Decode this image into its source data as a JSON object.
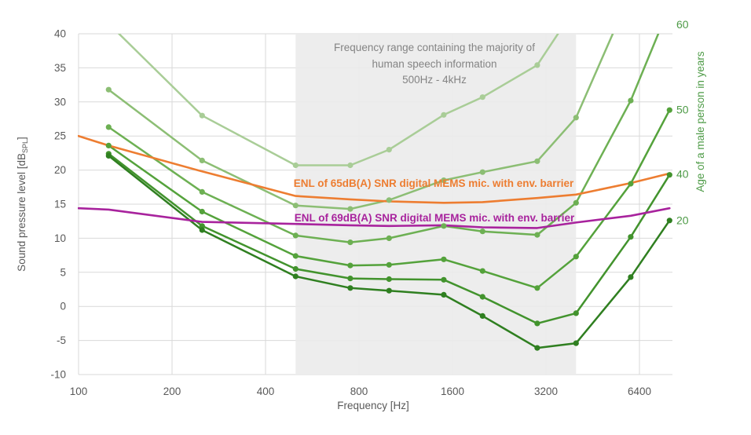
{
  "chart_data": {
    "type": "line",
    "title": "",
    "xlabel": "Frequency [Hz]",
    "ylabel_left": {
      "prefix": "Sound pressure level [dB",
      "subscript": "SPL",
      "suffix": "]"
    },
    "ylabel_right": "Age of a male person in years",
    "x_scale": "log2",
    "x_ticks": [
      100,
      200,
      400,
      800,
      1600,
      3200,
      6400
    ],
    "x_tick_labels": [
      "100",
      "200",
      "400",
      "800",
      "1600",
      "3200",
      "6400"
    ],
    "x_range_hz": [
      100,
      8300
    ],
    "y_ticks": [
      -10,
      -5,
      0,
      5,
      10,
      15,
      20,
      25,
      30,
      35,
      40
    ],
    "ylim": [
      -10,
      40
    ],
    "grid": true,
    "shaded_region": {
      "x_start_hz": 500,
      "x_end_hz": 4000,
      "label_line1": "Frequency range containing the majority of",
      "label_line2": "human speech information",
      "label_line3": "500Hz - 4kHz"
    },
    "threshold_frequencies_hz": [
      125,
      250,
      500,
      750,
      1000,
      1500,
      2000,
      3000,
      4000,
      6000,
      8000
    ],
    "series": [
      {
        "name": "male-hearing-threshold-oldest-unlabeled",
        "age_label": "",
        "color": "#a9cd97",
        "values": [
          41.5,
          28.0,
          20.7,
          20.7,
          23.0,
          28.1,
          30.7,
          35.4,
          44.0,
          null,
          null
        ]
      },
      {
        "name": "male-hearing-threshold-unlabeled",
        "age_label": "",
        "color": "#8cbe74",
        "values": [
          31.8,
          21.4,
          14.8,
          14.3,
          15.6,
          18.5,
          19.7,
          21.3,
          27.7,
          46.0,
          null
        ]
      },
      {
        "name": "male-hearing-threshold-age-60",
        "age_label": "60",
        "color": "#6db053",
        "values": [
          26.3,
          16.8,
          10.4,
          9.4,
          10.0,
          11.8,
          11.0,
          10.5,
          15.2,
          30.2,
          44.0
        ]
      },
      {
        "name": "male-hearing-threshold-age-50",
        "age_label": "50",
        "color": "#54a23b",
        "values": [
          23.6,
          13.9,
          7.4,
          6.0,
          6.1,
          6.9,
          5.2,
          2.7,
          7.3,
          18.0,
          28.8
        ]
      },
      {
        "name": "male-hearing-threshold-age-40",
        "age_label": "40",
        "color": "#42932d",
        "values": [
          22.4,
          11.8,
          5.5,
          4.1,
          4.0,
          3.9,
          1.4,
          -2.5,
          -1.0,
          10.2,
          19.3
        ]
      },
      {
        "name": "male-hearing-threshold-age-20",
        "age_label": "20",
        "color": "#2f7f20",
        "values": [
          22.1,
          11.2,
          4.4,
          2.7,
          2.3,
          1.7,
          -1.4,
          -6.1,
          -5.4,
          4.3,
          12.6
        ]
      }
    ],
    "mic_lines": [
      {
        "name": "enl-65dba-mems-mic",
        "color": "#ed7d31",
        "label": "ENL of 65dB(A) SNR digital MEMS mic. with env. barrier",
        "x": [
          100,
          125,
          250,
          500,
          750,
          1000,
          1500,
          2000,
          3000,
          4000,
          6000,
          8000
        ],
        "values": [
          25.0,
          23.6,
          19.8,
          16.2,
          15.7,
          15.4,
          15.2,
          15.3,
          15.9,
          16.4,
          18.1,
          19.5
        ]
      },
      {
        "name": "enl-69dba-mems-mic",
        "color": "#a8239d",
        "label": "ENL of 69dB(A) SNR digital MEMS mic. with env. barrier",
        "x": [
          100,
          125,
          250,
          500,
          750,
          1000,
          1500,
          2000,
          3000,
          4000,
          6000,
          8000
        ],
        "values": [
          14.4,
          14.2,
          12.4,
          12.1,
          11.9,
          11.8,
          11.9,
          11.6,
          11.5,
          12.3,
          13.3,
          14.4
        ]
      }
    ],
    "age_end_labels": [
      {
        "text": "60",
        "value_db": 41.3
      },
      {
        "text": "50",
        "value_db": 28.8
      },
      {
        "text": "40",
        "value_db": 19.4
      },
      {
        "text": "20",
        "value_db": 12.6
      }
    ],
    "legend_position": "none"
  },
  "colors": {
    "grid": "#d9d9d9",
    "band_fill": "#ebebeb",
    "annotation_text": "#848484",
    "tick_text": "#595959",
    "axis_title_text": "#595959",
    "age_label_green": "#4e9b47",
    "background": "#ffffff"
  }
}
